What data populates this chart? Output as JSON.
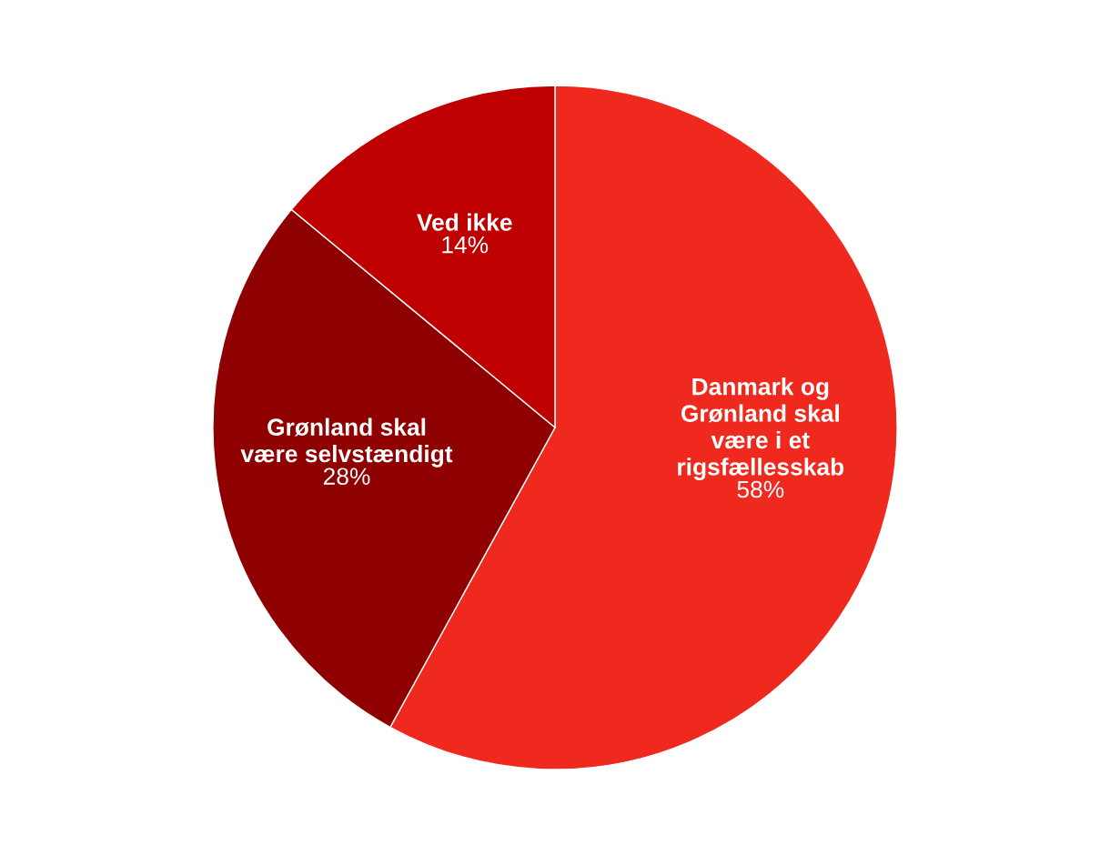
{
  "chart_data": {
    "type": "pie",
    "categories": [
      "Danmark og Grønland skal være i et rigsfællesskab",
      "Grønland skal være selvstændigt",
      "Ved ikke"
    ],
    "values": [
      58,
      28,
      14
    ],
    "colors": [
      "#f0291f",
      "#8f0000",
      "#bf0000"
    ],
    "value_labels": [
      "58%",
      "28%",
      "14%"
    ],
    "legend": false
  }
}
